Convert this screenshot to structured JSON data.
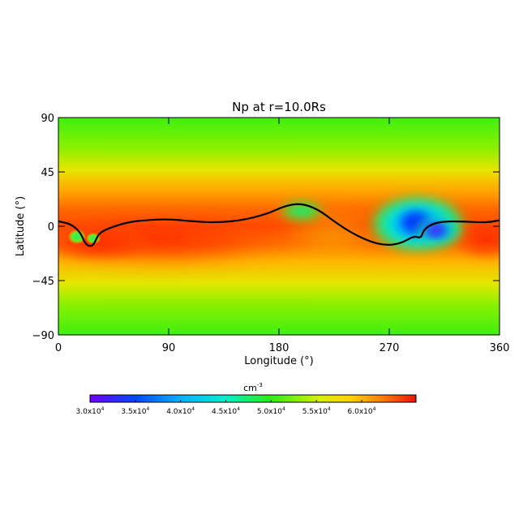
{
  "chart_data": {
    "type": "heatmap",
    "title": "Np at r=10.0Rs",
    "xlabel": "Longitude (°)",
    "ylabel": "Latitude (°)",
    "xlim": [
      0,
      360
    ],
    "ylim": [
      -90,
      90
    ],
    "x_ticks": [
      "0",
      "90",
      "180",
      "270",
      "360"
    ],
    "y_ticks": [
      "90",
      "45",
      "0",
      "−45",
      "−90"
    ],
    "x_tick_values": [
      0,
      90,
      180,
      270,
      360
    ],
    "y_tick_values": [
      90,
      45,
      0,
      -45,
      -90
    ],
    "colorbar": {
      "unit": "cm",
      "unit_exp": "-3",
      "range": [
        30000,
        66000
      ],
      "ticks": [
        30000,
        35000,
        40000,
        45000,
        50000,
        55000,
        60000
      ],
      "tick_labels": [
        {
          "mant": "3.0x10",
          "exp": "4"
        },
        {
          "mant": "3.5x10",
          "exp": "4"
        },
        {
          "mant": "4.0x10",
          "exp": "4"
        },
        {
          "mant": "4.5x10",
          "exp": "4"
        },
        {
          "mant": "5.0x10",
          "exp": "4"
        },
        {
          "mant": "5.5x10",
          "exp": "4"
        },
        {
          "mant": "6.0x10",
          "exp": "4"
        }
      ]
    },
    "neutral_line": [
      [
        0,
        4
      ],
      [
        10,
        2
      ],
      [
        18,
        -5
      ],
      [
        22,
        -15
      ],
      [
        27,
        -17
      ],
      [
        30,
        -13
      ],
      [
        33,
        -6
      ],
      [
        40,
        -2
      ],
      [
        55,
        3
      ],
      [
        70,
        5
      ],
      [
        90,
        6
      ],
      [
        110,
        4
      ],
      [
        130,
        3
      ],
      [
        150,
        5
      ],
      [
        170,
        10
      ],
      [
        185,
        17
      ],
      [
        198,
        19
      ],
      [
        212,
        14
      ],
      [
        225,
        4
      ],
      [
        240,
        -6
      ],
      [
        255,
        -13
      ],
      [
        268,
        -16
      ],
      [
        280,
        -14
      ],
      [
        290,
        -8
      ],
      [
        296,
        -10
      ],
      [
        298,
        -3
      ],
      [
        305,
        2
      ],
      [
        315,
        4
      ],
      [
        330,
        4
      ],
      [
        350,
        3
      ],
      [
        360,
        5
      ]
    ],
    "density_features": [
      {
        "lon": 200,
        "lat": 15,
        "value": 47000,
        "note": "green blob"
      },
      {
        "lon": 290,
        "lat": 2,
        "value": 36000,
        "note": "blue core"
      },
      {
        "lon": 310,
        "lat": -6,
        "value": 33000,
        "note": "violet core"
      },
      {
        "lon": 15,
        "lat": -9,
        "value": 46000,
        "note": "green spot"
      },
      {
        "lon": 28,
        "lat": -12,
        "value": 50000,
        "note": "green spot"
      }
    ],
    "background": "latitudinal band: ~49000 at poles, ~62000-64000 near equator"
  }
}
